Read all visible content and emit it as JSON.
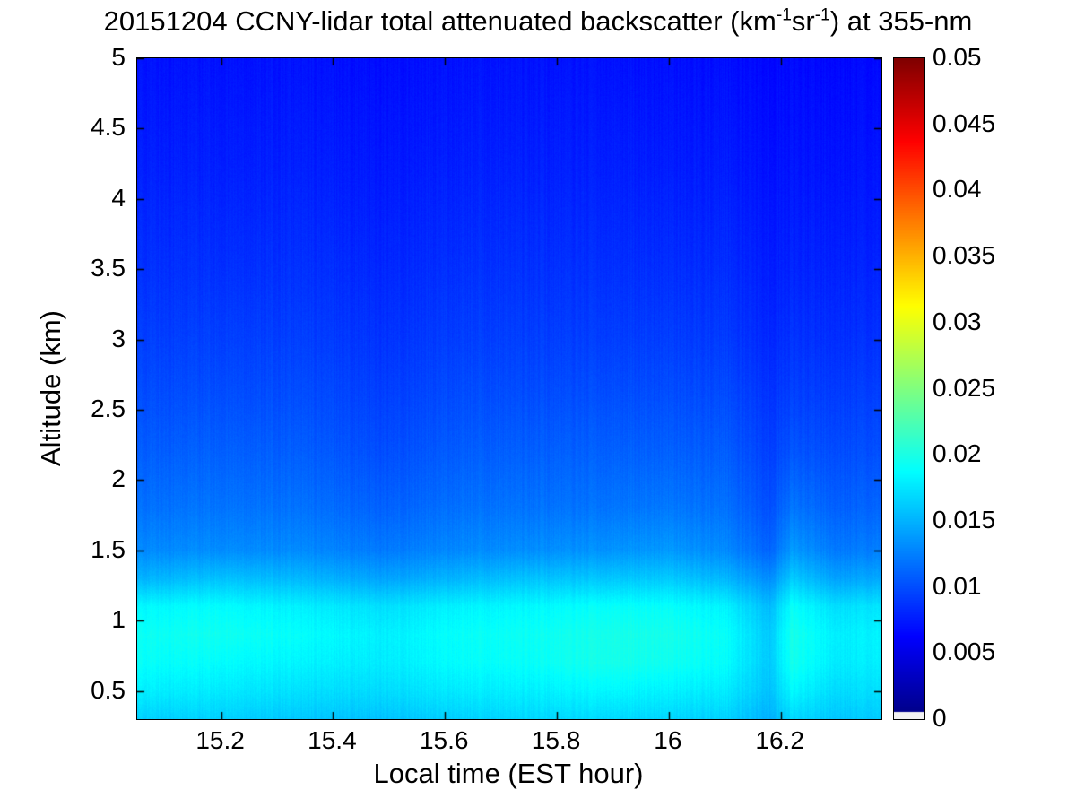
{
  "title": {
    "part1": "20151204 CCNY-lidar total attenuated backscatter (km",
    "sup1": "-1",
    "part2": "sr",
    "sup2": "-1",
    "part3": ") at 355-nm"
  },
  "colors": {
    "background": "#ffffff",
    "axis": "#000000",
    "text": "#000000",
    "colorbar_undercolor": "#f2f2f2"
  },
  "chart_data": {
    "type": "heatmap",
    "title": "20151204 CCNY-lidar total attenuated backscatter (km⁻¹sr⁻¹) at 355-nm",
    "xlabel": "Local time (EST hour)",
    "ylabel": "Altitude (km)",
    "xlim": [
      15.05,
      16.38
    ],
    "ylim": [
      0.3,
      5
    ],
    "clim": [
      0,
      0.05
    ],
    "colormap": "jet",
    "grid_lines": false,
    "legend": "colorbar-right",
    "x_ticks": [
      15.2,
      15.4,
      15.6,
      15.8,
      16,
      16.2
    ],
    "x_tick_labels": [
      "15.2",
      "15.4",
      "15.6",
      "15.8",
      "16",
      "16.2"
    ],
    "y_ticks": [
      0.5,
      1,
      1.5,
      2,
      2.5,
      3,
      3.5,
      4,
      4.5,
      5
    ],
    "y_tick_labels": [
      "0.5",
      "1",
      "1.5",
      "2",
      "2.5",
      "3",
      "3.5",
      "4",
      "4.5",
      "5"
    ],
    "colorbar_ticks": [
      0,
      0.005,
      0.01,
      0.015,
      0.02,
      0.025,
      0.03,
      0.035,
      0.04,
      0.045,
      0.05
    ],
    "colorbar_tick_labels": [
      "0",
      "0.005",
      "0.01",
      "0.015",
      "0.02",
      "0.025",
      "0.03",
      "0.035",
      "0.04",
      "0.045",
      "0.05"
    ],
    "grid": {
      "times": [
        15.05,
        15.2,
        15.35,
        15.5,
        15.62,
        15.75,
        15.88,
        16.0,
        16.1,
        16.18,
        16.22,
        16.3,
        16.38
      ],
      "altitudes_km": [
        0.3,
        0.5,
        0.7,
        0.9,
        1.1,
        1.3,
        1.5,
        1.8,
        2.2,
        2.6,
        3.0,
        3.5,
        4.2,
        5.0
      ],
      "values": [
        [
          0.0165,
          0.0165,
          0.016,
          0.0158,
          0.0165,
          0.0168,
          0.017,
          0.0168,
          0.0165,
          0.015,
          0.0168,
          0.016,
          0.0162
        ],
        [
          0.018,
          0.0178,
          0.0172,
          0.017,
          0.0178,
          0.018,
          0.0185,
          0.0182,
          0.0178,
          0.0158,
          0.0185,
          0.017,
          0.0172
        ],
        [
          0.019,
          0.0188,
          0.0182,
          0.0178,
          0.0188,
          0.019,
          0.0198,
          0.0195,
          0.0188,
          0.0162,
          0.0196,
          0.0178,
          0.018
        ],
        [
          0.0192,
          0.0195,
          0.0188,
          0.018,
          0.019,
          0.0192,
          0.0198,
          0.0198,
          0.019,
          0.0162,
          0.0198,
          0.018,
          0.0182
        ],
        [
          0.0185,
          0.0188,
          0.018,
          0.0172,
          0.0182,
          0.0185,
          0.019,
          0.019,
          0.0182,
          0.0155,
          0.019,
          0.0172,
          0.0175
        ],
        [
          0.015,
          0.0158,
          0.0152,
          0.0142,
          0.0152,
          0.0158,
          0.016,
          0.0162,
          0.0152,
          0.0132,
          0.0162,
          0.0142,
          0.0145
        ],
        [
          0.013,
          0.0132,
          0.013,
          0.0122,
          0.013,
          0.0132,
          0.0135,
          0.0138,
          0.013,
          0.0112,
          0.0138,
          0.0122,
          0.0124
        ],
        [
          0.0118,
          0.012,
          0.0118,
          0.011,
          0.0118,
          0.0119,
          0.012,
          0.0122,
          0.0118,
          0.0102,
          0.012,
          0.011,
          0.0112
        ],
        [
          0.0108,
          0.011,
          0.0108,
          0.01,
          0.0108,
          0.0109,
          0.011,
          0.011,
          0.0108,
          0.0094,
          0.0104,
          0.01,
          0.0101
        ],
        [
          0.01,
          0.0101,
          0.01,
          0.0093,
          0.01,
          0.01,
          0.0101,
          0.0101,
          0.0099,
          0.0088,
          0.0094,
          0.0092,
          0.0093
        ],
        [
          0.0093,
          0.0094,
          0.0093,
          0.0087,
          0.0093,
          0.0093,
          0.0093,
          0.0093,
          0.0091,
          0.0082,
          0.0087,
          0.0085,
          0.0086
        ],
        [
          0.0086,
          0.0086,
          0.0086,
          0.0081,
          0.0086,
          0.0086,
          0.0086,
          0.0085,
          0.0084,
          0.0077,
          0.008,
          0.0079,
          0.0079
        ],
        [
          0.0078,
          0.0078,
          0.0078,
          0.0074,
          0.0078,
          0.0078,
          0.0078,
          0.0077,
          0.0076,
          0.0071,
          0.0073,
          0.0072,
          0.0072
        ],
        [
          0.0071,
          0.0071,
          0.0071,
          0.0068,
          0.0071,
          0.0071,
          0.0071,
          0.007,
          0.0069,
          0.0066,
          0.0067,
          0.0066,
          0.0066
        ]
      ]
    }
  }
}
